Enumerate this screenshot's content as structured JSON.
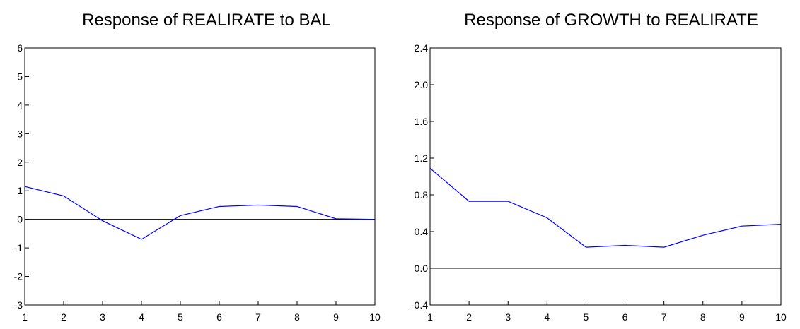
{
  "chart_data": [
    {
      "type": "line",
      "title": "Response of REALIRATE to BAL",
      "xlabel": "",
      "ylabel": "",
      "x": [
        1,
        2,
        3,
        4,
        5,
        6,
        7,
        8,
        9,
        10
      ],
      "series": [
        {
          "values": [
            1.15,
            0.82,
            -0.05,
            -0.7,
            0.13,
            0.45,
            0.5,
            0.45,
            0.02,
            0.0
          ]
        }
      ],
      "xlim": [
        1,
        10
      ],
      "ylim": [
        -3,
        6
      ],
      "yticks": [
        "-3",
        "-2",
        "-1",
        "0",
        "1",
        "2",
        "3",
        "4",
        "5",
        "6"
      ],
      "xticks": [
        "1",
        "2",
        "3",
        "4",
        "5",
        "6",
        "7",
        "8",
        "9",
        "10"
      ],
      "zero_line": true,
      "grid": false,
      "line_color": "#0000ff"
    },
    {
      "type": "line",
      "title": "Response of GROWTH to REALIRATE",
      "xlabel": "",
      "ylabel": "",
      "x": [
        1,
        2,
        3,
        4,
        5,
        6,
        7,
        8,
        9,
        10
      ],
      "series": [
        {
          "values": [
            1.09,
            0.73,
            0.73,
            0.55,
            0.23,
            0.25,
            0.23,
            0.36,
            0.46,
            0.48
          ]
        }
      ],
      "xlim": [
        1,
        10
      ],
      "ylim": [
        -0.4,
        2.4
      ],
      "yticks": [
        "-0.4",
        "0.0",
        "0.4",
        "0.8",
        "1.2",
        "1.6",
        "2.0",
        "2.4"
      ],
      "xticks": [
        "1",
        "2",
        "3",
        "4",
        "5",
        "6",
        "7",
        "8",
        "9",
        "10"
      ],
      "zero_line": true,
      "grid": false,
      "line_color": "#0000ff"
    }
  ]
}
